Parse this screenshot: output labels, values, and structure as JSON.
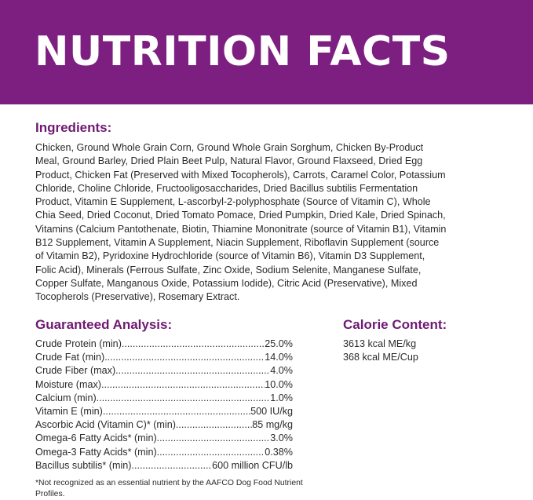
{
  "header": {
    "title": "NUTRITION FACTS",
    "background": "#7d1f80"
  },
  "ingredients": {
    "heading": "Ingredients:",
    "lines": [
      "Chicken, Ground Whole Grain Corn, Ground Whole Grain Sorghum, Chicken By-Product",
      "Meal, Ground Barley, Dried Plain Beet Pulp, Natural Flavor, Ground Flaxseed, Dried Egg",
      "Product, Chicken Fat (Preserved with Mixed Tocopherols), Carrots, Caramel Color, Potassium",
      "Chloride, Choline Chloride, Fructooligosaccharides, Dried Bacillus subtilis Fermentation",
      "Product, Vitamin E Supplement,  L-ascorbyl-2-polyphosphate (Source of Vitamin C), Whole",
      "Chia Seed, Dried Coconut, Dried Tomato Pomace, Dried Pumpkin, Dried Kale, Dried Spinach,",
      "Vitamins (Calcium Pantothenate, Biotin, Thiamine Mononitrate (source of Vitamin B1), Vitamin",
      "B12 Supplement, Vitamin A Supplement, Niacin Supplement, Riboflavin Supplement (source",
      "of Vitamin B2), Pyridoxine Hydrochloride (source of Vitamin B6), Vitamin D3 Supplement,",
      "Folic Acid), Minerals (Ferrous Sulfate, Zinc Oxide, Sodium Selenite, Manganese Sulfate,",
      "Copper Sulfate, Manganous Oxide, Potassium Iodide), Citric Acid (Preservative), Mixed",
      "Tocopherols (Preservative), Rosemary Extract."
    ]
  },
  "analysis": {
    "heading": "Guaranteed Analysis:",
    "rows": [
      {
        "label": "Crude Protein (min)",
        "value": "25.0%"
      },
      {
        "label": "Crude Fat (min)",
        "value": "14.0%"
      },
      {
        "label": "Crude Fiber (max)",
        "value": "4.0%"
      },
      {
        "label": "Moisture (max)",
        "value": "10.0%"
      },
      {
        "label": "Calcium (min)",
        "value": "1.0%"
      },
      {
        "label": "Vitamin E (min)",
        "value": " 500 IU/kg"
      },
      {
        "label": "Ascorbic Acid (Vitamin C)* (min)",
        "value": "85 mg/kg"
      },
      {
        "label": "Omega-6 Fatty Acids* (min)",
        "value": "3.0%"
      },
      {
        "label": "Omega-3 Fatty Acids* (min)",
        "value": "0.38%"
      },
      {
        "label": "Bacillus subtilis* (min)",
        "value": "600 million CFU/lb"
      }
    ],
    "footnote": "*Not recognized as an essential nutrient by the AAFCO Dog Food Nutrient Profiles."
  },
  "calorie": {
    "heading": "Calorie Content:",
    "lines": [
      "3613 kcal ME/kg",
      "368 kcal ME/Cup"
    ]
  }
}
